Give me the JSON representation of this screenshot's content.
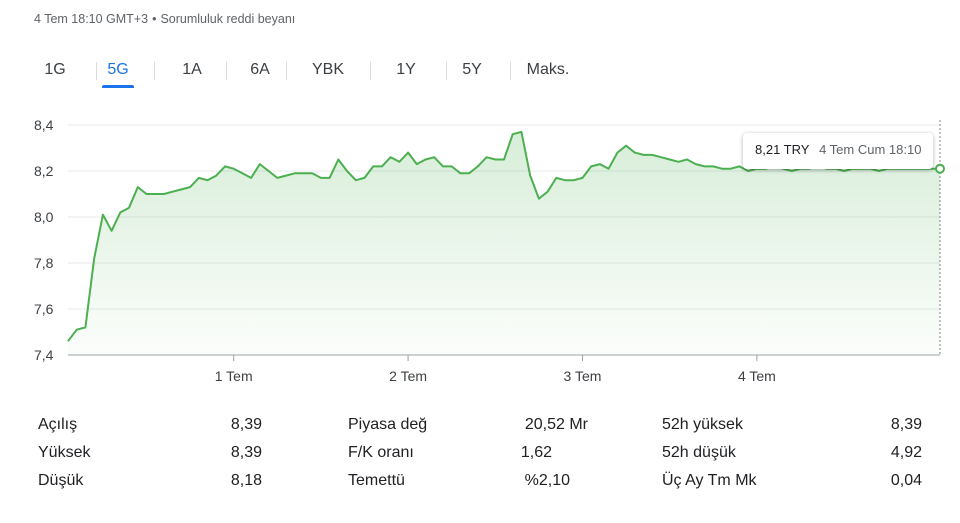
{
  "header": {
    "timestamp": "4 Tem 18:10 GMT+3",
    "separator": "•",
    "disclaimer": "Sorumluluk reddi beyanı"
  },
  "tabs": [
    {
      "label": "1G",
      "active": false
    },
    {
      "label": "5G",
      "active": true
    },
    {
      "label": "1A",
      "active": false
    },
    {
      "label": "6A",
      "active": false
    },
    {
      "label": "YBK",
      "active": false
    },
    {
      "label": "1Y",
      "active": false
    },
    {
      "label": "5Y",
      "active": false
    },
    {
      "label": "Maks.",
      "active": false
    }
  ],
  "tooltip": {
    "price": "8,21 TRY",
    "time": "4 Tem Cum 18:10"
  },
  "colors": {
    "line": "#4caf50",
    "fill_top": "#4caf50",
    "accent": "#1a73e8",
    "grid": "#e8eaed",
    "axis_text": "#3c4043"
  },
  "chart_data": {
    "type": "area",
    "ylim": [
      7.4,
      8.4
    ],
    "y_ticks": [
      "7,4",
      "7,6",
      "7,8",
      "8,0",
      "8,2",
      "8,4"
    ],
    "x_ticks": [
      "1 Tem",
      "2 Tem",
      "3 Tem",
      "4 Tem"
    ],
    "xlim": [
      0,
      100
    ],
    "x_tick_positions": [
      19,
      39,
      59,
      79
    ],
    "series": [
      {
        "x": [
          0.0,
          1.0,
          2.0,
          3.0,
          4.0,
          5.0,
          6.0,
          7.0,
          8.0,
          9.0,
          10.0,
          11.0,
          12.0,
          13.0,
          14.0,
          15.0,
          16.0,
          17.0,
          18.0,
          19.0,
          20.0,
          21.0,
          22.0,
          23.0,
          24.0,
          25.0,
          26.0,
          27.0,
          28.0,
          29.0,
          30.0,
          31.0,
          32.0,
          33.0,
          34.0,
          35.0,
          36.0,
          37.0,
          38.0,
          39.0,
          40.0,
          41.0,
          42.0,
          43.0,
          44.0,
          45.0,
          46.0,
          47.0,
          48.0,
          49.0,
          50.0,
          51.0,
          52.0,
          53.0,
          54.0,
          55.0,
          56.0,
          57.0,
          58.0,
          59.0,
          60.0,
          61.0,
          62.0,
          63.0,
          64.0,
          65.0,
          66.0,
          67.0,
          68.0,
          69.0,
          70.0,
          71.0,
          72.0,
          73.0,
          74.0,
          75.0,
          76.0,
          77.0,
          78.0,
          79.0,
          80.0,
          81.0,
          82.0,
          83.0,
          84.0,
          85.0,
          86.0,
          87.0,
          88.0,
          89.0,
          90.0,
          91.0,
          92.0,
          93.0,
          94.0,
          95.0,
          96.0,
          97.0,
          98.0,
          99.0,
          100.0
        ],
        "y": [
          7.46,
          7.51,
          7.52,
          7.82,
          8.01,
          7.94,
          8.02,
          8.04,
          8.13,
          8.1,
          8.1,
          8.1,
          8.11,
          8.12,
          8.13,
          8.17,
          8.16,
          8.18,
          8.22,
          8.21,
          8.19,
          8.17,
          8.23,
          8.2,
          8.17,
          8.18,
          8.19,
          8.19,
          8.19,
          8.17,
          8.17,
          8.25,
          8.2,
          8.16,
          8.17,
          8.22,
          8.22,
          8.26,
          8.24,
          8.28,
          8.23,
          8.25,
          8.26,
          8.22,
          8.22,
          8.19,
          8.19,
          8.22,
          8.26,
          8.25,
          8.25,
          8.36,
          8.37,
          8.18,
          8.08,
          8.11,
          8.17,
          8.16,
          8.16,
          8.17,
          8.22,
          8.23,
          8.21,
          8.28,
          8.31,
          8.28,
          8.27,
          8.27,
          8.26,
          8.25,
          8.24,
          8.25,
          8.23,
          8.22,
          8.22,
          8.21,
          8.21,
          8.22,
          8.2,
          8.21,
          8.21,
          8.22,
          8.21,
          8.2,
          8.21,
          8.21,
          8.22,
          8.21,
          8.21,
          8.2,
          8.21,
          8.21,
          8.21,
          8.2,
          8.21,
          8.21,
          8.21,
          8.21,
          8.21,
          8.21,
          8.21
        ]
      }
    ]
  },
  "stats": [
    [
      {
        "label": "Açılış",
        "value": "8,39"
      },
      {
        "label": "Piyasa değ",
        "value": "20,52 Mr"
      },
      {
        "label": "52h yüksek",
        "value": "8,39"
      }
    ],
    [
      {
        "label": "Yüksek",
        "value": "8,39"
      },
      {
        "label": "F/K oranı",
        "value": "1,62"
      },
      {
        "label": "52h düşük",
        "value": "4,92"
      }
    ],
    [
      {
        "label": "Düşük",
        "value": "8,18"
      },
      {
        "label": "Temettü",
        "value": "%2,10"
      },
      {
        "label": "Üç Ay Tm Mk",
        "value": "0,04"
      }
    ]
  ]
}
